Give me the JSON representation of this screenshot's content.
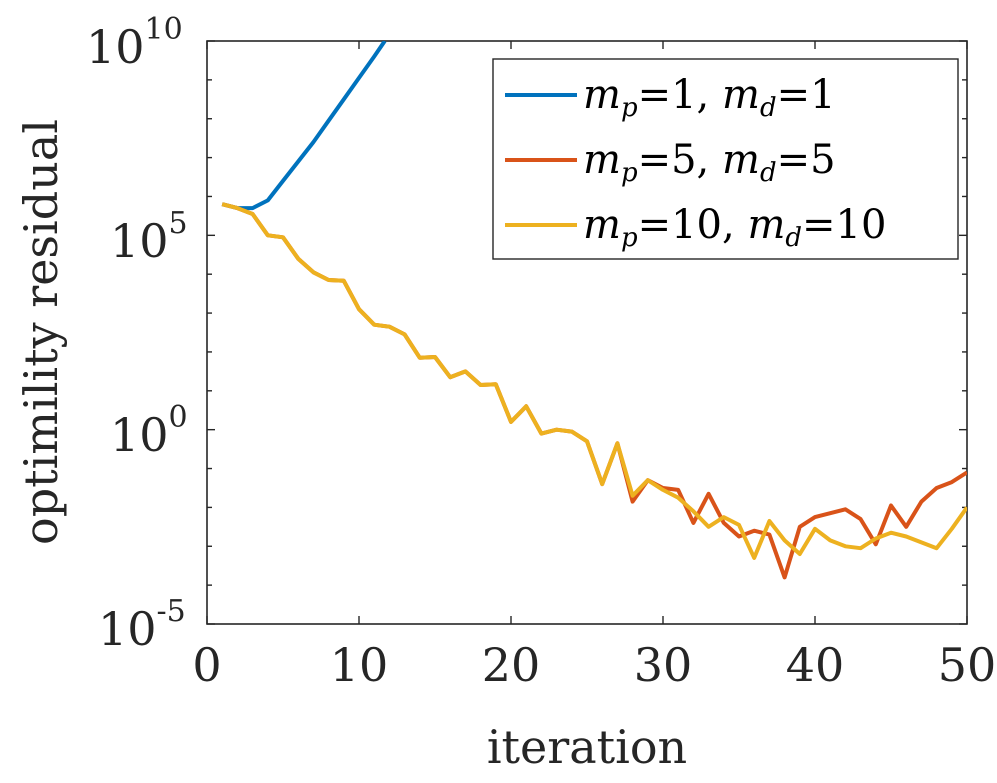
{
  "chart_data": {
    "type": "line",
    "xlabel": "iteration",
    "ylabel": "optimility residual",
    "yscale": "log",
    "xlim": [
      0,
      50
    ],
    "ylim_exponent": [
      -5,
      10
    ],
    "x_ticks": [
      "0",
      "10",
      "20",
      "30",
      "40",
      "50"
    ],
    "y_ticks": [
      {
        "base": "10",
        "exponent": "-5"
      },
      {
        "base": "10",
        "exponent": "0"
      },
      {
        "base": "10",
        "exponent": "5"
      },
      {
        "base": "10",
        "exponent": "10"
      }
    ],
    "legend_position": "top-right",
    "series": [
      {
        "name": "m_p=1, m_d=1",
        "legend": {
          "a": "m",
          "a_sub": "p",
          "a_val": "=1, ",
          "b": "m",
          "b_sub": "d",
          "b_val": "=1"
        },
        "color": "#0072BD",
        "points": [
          [
            1,
            5.8
          ],
          [
            2,
            5.7
          ],
          [
            3,
            5.7
          ],
          [
            4,
            5.9
          ],
          [
            5,
            6.4
          ],
          [
            6,
            6.9
          ],
          [
            7,
            7.4
          ],
          [
            8,
            7.95
          ],
          [
            9,
            8.5
          ],
          [
            10,
            9.05
          ],
          [
            11,
            9.6
          ],
          [
            11.7,
            10
          ]
        ]
      },
      {
        "name": "m_p=5, m_d=5",
        "legend": {
          "a": "m",
          "a_sub": "p",
          "a_val": "=5, ",
          "b": "m",
          "b_sub": "d",
          "b_val": "=5"
        },
        "color": "#D95319",
        "points": [
          [
            1,
            5.8
          ],
          [
            2,
            5.7
          ],
          [
            3,
            5.55
          ],
          [
            4,
            5.0
          ],
          [
            5,
            4.95
          ],
          [
            6,
            4.4
          ],
          [
            7,
            4.05
          ],
          [
            8,
            3.85
          ],
          [
            9,
            3.83
          ],
          [
            10,
            3.1
          ],
          [
            11,
            2.7
          ],
          [
            12,
            2.65
          ],
          [
            13,
            2.45
          ],
          [
            14,
            1.85
          ],
          [
            15,
            1.87
          ],
          [
            16,
            1.35
          ],
          [
            17,
            1.5
          ],
          [
            18,
            1.15
          ],
          [
            19,
            1.17
          ],
          [
            20,
            0.2
          ],
          [
            21,
            0.6
          ],
          [
            22,
            -0.1
          ],
          [
            23,
            0.0
          ],
          [
            24,
            -0.05
          ],
          [
            25,
            -0.3
          ],
          [
            26,
            -1.4
          ],
          [
            27,
            -0.35
          ],
          [
            28,
            -1.85
          ],
          [
            29,
            -1.3
          ],
          [
            30,
            -1.5
          ],
          [
            31,
            -1.55
          ],
          [
            32,
            -2.4
          ],
          [
            33,
            -1.65
          ],
          [
            34,
            -2.4
          ],
          [
            35,
            -2.75
          ],
          [
            36,
            -2.6
          ],
          [
            37,
            -2.7
          ],
          [
            38,
            -3.8
          ],
          [
            39,
            -2.5
          ],
          [
            40,
            -2.25
          ],
          [
            41,
            -2.15
          ],
          [
            42,
            -2.05
          ],
          [
            43,
            -2.3
          ],
          [
            44,
            -2.95
          ],
          [
            45,
            -1.95
          ],
          [
            46,
            -2.5
          ],
          [
            47,
            -1.85
          ],
          [
            48,
            -1.5
          ],
          [
            49,
            -1.35
          ],
          [
            50,
            -1.1
          ]
        ]
      },
      {
        "name": "m_p=10, m_d=10",
        "legend": {
          "a": "m",
          "a_sub": "p",
          "a_val": "=10, ",
          "b": "m",
          "b_sub": "d",
          "b_val": "=10"
        },
        "color": "#EDB120",
        "points": [
          [
            1,
            5.8
          ],
          [
            2,
            5.7
          ],
          [
            3,
            5.55
          ],
          [
            4,
            5.0
          ],
          [
            5,
            4.95
          ],
          [
            6,
            4.4
          ],
          [
            7,
            4.05
          ],
          [
            8,
            3.85
          ],
          [
            9,
            3.83
          ],
          [
            10,
            3.1
          ],
          [
            11,
            2.7
          ],
          [
            12,
            2.65
          ],
          [
            13,
            2.45
          ],
          [
            14,
            1.85
          ],
          [
            15,
            1.87
          ],
          [
            16,
            1.35
          ],
          [
            17,
            1.5
          ],
          [
            18,
            1.15
          ],
          [
            19,
            1.17
          ],
          [
            20,
            0.2
          ],
          [
            21,
            0.6
          ],
          [
            22,
            -0.1
          ],
          [
            23,
            0.0
          ],
          [
            24,
            -0.05
          ],
          [
            25,
            -0.3
          ],
          [
            26,
            -1.4
          ],
          [
            27,
            -0.35
          ],
          [
            28,
            -1.7
          ],
          [
            29,
            -1.3
          ],
          [
            30,
            -1.55
          ],
          [
            31,
            -1.75
          ],
          [
            32,
            -2.1
          ],
          [
            33,
            -2.5
          ],
          [
            34,
            -2.25
          ],
          [
            35,
            -2.45
          ],
          [
            36,
            -3.3
          ],
          [
            37,
            -2.35
          ],
          [
            38,
            -2.85
          ],
          [
            39,
            -3.2
          ],
          [
            40,
            -2.55
          ],
          [
            41,
            -2.85
          ],
          [
            42,
            -3.0
          ],
          [
            43,
            -3.05
          ],
          [
            44,
            -2.8
          ],
          [
            45,
            -2.65
          ],
          [
            46,
            -2.75
          ],
          [
            47,
            -2.9
          ],
          [
            48,
            -3.05
          ],
          [
            49,
            -2.55
          ],
          [
            50,
            -2.0
          ]
        ]
      }
    ]
  }
}
